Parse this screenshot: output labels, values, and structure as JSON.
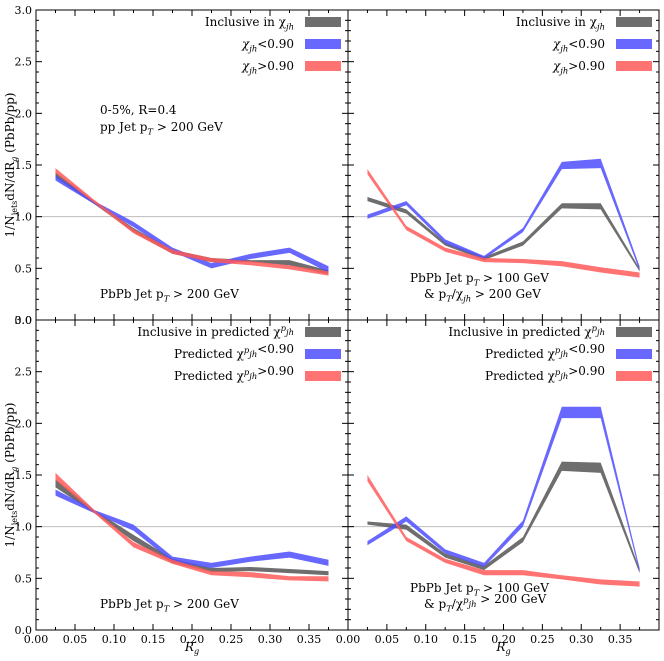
{
  "chart_data": {
    "type": "line",
    "y_axis_label": "1/N",
    "y_axis_label_sub": "jets",
    "y_axis_label_tail": "dN/dR",
    "y_axis_label_sub2": "g",
    "y_axis_label_end": " (PbPb/pp)",
    "x_axis_label": "R",
    "x_axis_label_sub": "g",
    "xlim": [
      0.0,
      0.4
    ],
    "ylim": [
      0.0,
      3.0
    ],
    "x_ticks": [
      0.0,
      0.05,
      0.1,
      0.15,
      0.2,
      0.25,
      0.3,
      0.35
    ],
    "x_tick_labels": [
      "0.00",
      "0.05",
      "0.10",
      "0.15",
      "0.20",
      "0.25",
      "0.30",
      "0.35"
    ],
    "y_ticks": [
      0.0,
      0.5,
      1.0,
      1.5,
      2.0,
      2.5,
      3.0
    ],
    "y_tick_labels": [
      "0.0",
      "0.5",
      "1.0",
      "1.5",
      "2.0",
      "2.5",
      "3.0"
    ],
    "reference_line": 1.0,
    "colors": {
      "inclusive": "#555555",
      "low": "#4d4dff",
      "high": "#ff5a5a"
    },
    "x": [
      0.025,
      0.075,
      0.125,
      0.175,
      0.225,
      0.275,
      0.325,
      0.375
    ],
    "panels": [
      {
        "id": "top-left",
        "annotation_lines": [
          "0-5%, R=0.4",
          "pp Jet p_T > 200 GeV"
        ],
        "cut_lines": [
          "PbPb Jet p_T > 200 GeV"
        ],
        "legend": [
          {
            "key": "inclusive",
            "label": "Inclusive in χ_jh"
          },
          {
            "key": "low",
            "label": "χ_jh<0.90"
          },
          {
            "key": "high",
            "label": "χ_jh>0.90"
          }
        ],
        "series": [
          {
            "key": "inclusive",
            "lower": [
              1.38,
              1.12,
              0.85,
              0.64,
              0.56,
              0.56,
              0.53,
              0.44
            ],
            "upper": [
              1.43,
              1.15,
              0.89,
              0.68,
              0.6,
              0.58,
              0.58,
              0.48
            ]
          },
          {
            "key": "low",
            "lower": [
              1.35,
              1.12,
              0.9,
              0.66,
              0.5,
              0.59,
              0.65,
              0.46
            ],
            "upper": [
              1.4,
              1.15,
              0.95,
              0.7,
              0.55,
              0.64,
              0.7,
              0.52
            ]
          },
          {
            "key": "high",
            "lower": [
              1.42,
              1.13,
              0.84,
              0.64,
              0.56,
              0.53,
              0.49,
              0.43
            ],
            "upper": [
              1.47,
              1.16,
              0.88,
              0.68,
              0.6,
              0.57,
              0.53,
              0.47
            ]
          }
        ]
      },
      {
        "id": "top-right",
        "annotation_lines": [],
        "cut_lines": [
          "PbPb Jet p_T > 100 GeV",
          "& p_T/χ_jh > 200 GeV"
        ],
        "legend": [
          {
            "key": "inclusive",
            "label": "Inclusive in χ_jh"
          },
          {
            "key": "low",
            "label": "χ_jh<0.90"
          },
          {
            "key": "high",
            "label": "χ_jh>0.90"
          }
        ],
        "series": [
          {
            "key": "inclusive",
            "lower": [
              1.15,
              1.03,
              0.72,
              0.58,
              0.72,
              1.08,
              1.07,
              0.47
            ],
            "upper": [
              1.19,
              1.07,
              0.75,
              0.61,
              0.76,
              1.13,
              1.13,
              0.5
            ]
          },
          {
            "key": "low",
            "lower": [
              0.98,
              1.11,
              0.74,
              0.59,
              0.85,
              1.46,
              1.47,
              0.48
            ],
            "upper": [
              1.02,
              1.15,
              0.78,
              0.62,
              0.89,
              1.53,
              1.56,
              0.52
            ]
          },
          {
            "key": "high",
            "lower": [
              1.41,
              0.87,
              0.66,
              0.56,
              0.55,
              0.52,
              0.46,
              0.41
            ],
            "upper": [
              1.46,
              0.91,
              0.7,
              0.6,
              0.59,
              0.57,
              0.51,
              0.46
            ]
          }
        ]
      },
      {
        "id": "bottom-left",
        "annotation_lines": [],
        "cut_lines": [
          "PbPb Jet p_T > 200 GeV"
        ],
        "legend": [
          {
            "key": "inclusive",
            "label": "Inclusive in predicted χ^p_jh"
          },
          {
            "key": "low",
            "label": "Predicted χ^p_jh<0.90"
          },
          {
            "key": "high",
            "label": "Predicted χ^p_jh>0.90"
          }
        ],
        "series": [
          {
            "key": "inclusive",
            "lower": [
              1.38,
              1.13,
              0.86,
              0.65,
              0.56,
              0.57,
              0.55,
              0.53
            ],
            "upper": [
              1.46,
              1.16,
              0.92,
              0.69,
              0.6,
              0.61,
              0.59,
              0.57
            ]
          },
          {
            "key": "low",
            "lower": [
              1.3,
              1.13,
              0.96,
              0.66,
              0.6,
              0.66,
              0.7,
              0.62
            ],
            "upper": [
              1.36,
              1.16,
              1.02,
              0.71,
              0.65,
              0.71,
              0.76,
              0.68
            ]
          },
          {
            "key": "high",
            "lower": [
              1.45,
              1.13,
              0.8,
              0.64,
              0.53,
              0.51,
              0.48,
              0.47
            ],
            "upper": [
              1.52,
              1.16,
              0.85,
              0.68,
              0.57,
              0.56,
              0.52,
              0.52
            ]
          }
        ]
      },
      {
        "id": "bottom-right",
        "annotation_lines": [],
        "cut_lines": [
          "PbPb Jet p_T > 100 GeV",
          "& p_T/χ^p_jh > 200 GeV"
        ],
        "legend": [
          {
            "key": "inclusive",
            "label": "Inclusive in predicted χ^p_jh"
          },
          {
            "key": "low",
            "label": "Predicted χ^p_jh<0.90"
          },
          {
            "key": "high",
            "label": "Predicted χ^p_jh>0.90"
          }
        ],
        "series": [
          {
            "key": "inclusive",
            "lower": [
              1.02,
              0.97,
              0.7,
              0.58,
              0.85,
              1.54,
              1.52,
              0.55
            ],
            "upper": [
              1.05,
              1.02,
              0.74,
              0.62,
              0.9,
              1.63,
              1.62,
              0.59
            ]
          },
          {
            "key": "low",
            "lower": [
              0.82,
              1.05,
              0.74,
              0.61,
              1.0,
              2.05,
              2.05,
              0.56
            ],
            "upper": [
              0.86,
              1.1,
              0.78,
              0.65,
              1.06,
              2.16,
              2.16,
              0.6
            ]
          },
          {
            "key": "high",
            "lower": [
              1.44,
              0.86,
              0.65,
              0.53,
              0.53,
              0.49,
              0.44,
              0.42
            ],
            "upper": [
              1.5,
              0.9,
              0.69,
              0.58,
              0.58,
              0.53,
              0.49,
              0.47
            ]
          }
        ]
      }
    ]
  }
}
